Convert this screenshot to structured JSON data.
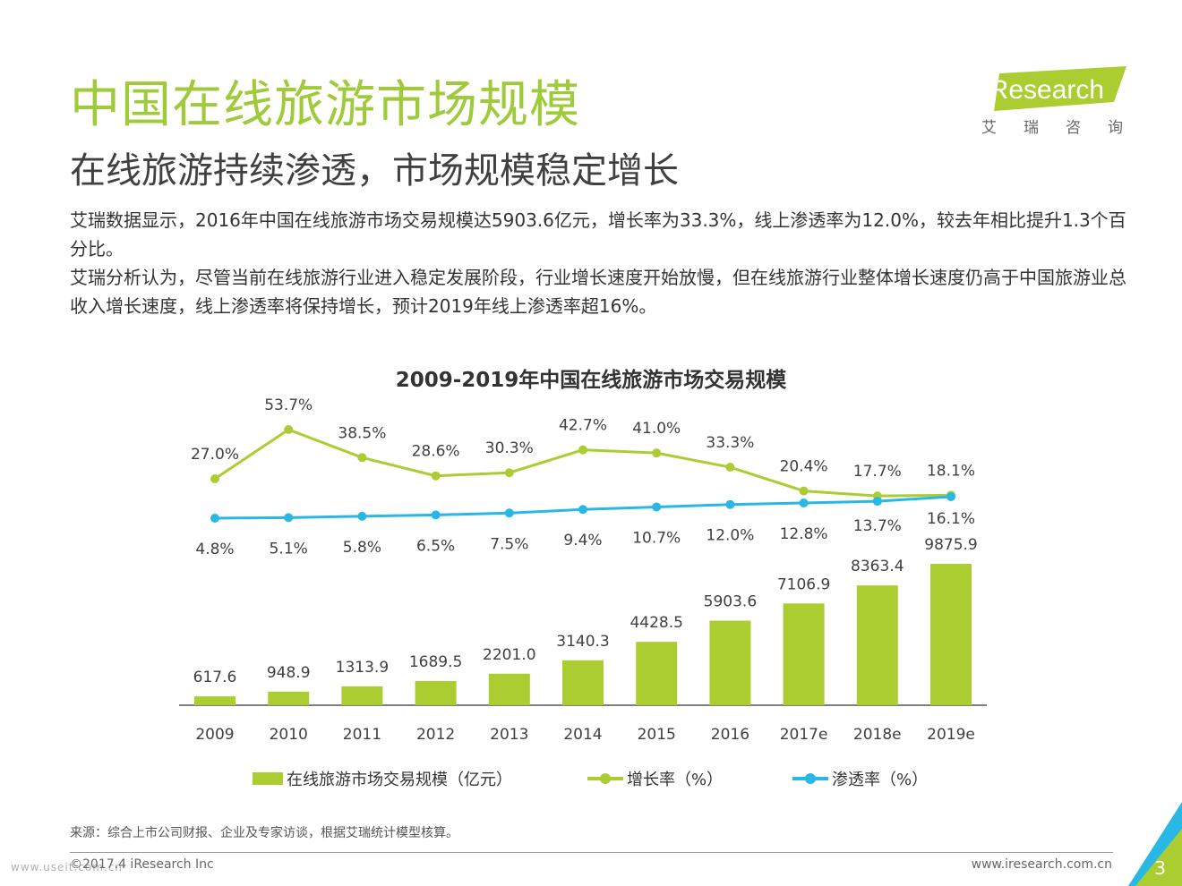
{
  "header": {
    "title": "中国在线旅游市场规模",
    "subtitle": "在线旅游持续渗透，市场规模稳定增长"
  },
  "logo": {
    "text": "iResearch",
    "cn_text": "艾瑞咨询",
    "brand_color": "#abcd32"
  },
  "body": {
    "paragraph1": "艾瑞数据显示，2016年中国在线旅游市场交易规模达5903.6亿元，增长率为33.3%，线上渗透率为12.0%，较去年相比提升1.3个百分比。",
    "paragraph2": "艾瑞分析认为，尽管当前在线旅游行业进入稳定发展阶段，行业增长速度开始放慢，但在线旅游行业整体增长速度仍高于中国旅游业总收入增长速度，线上渗透率将保持增长，预计2019年线上渗透率超16%。"
  },
  "chart_data": {
    "type": "bar",
    "title": "2009-2019年中国在线旅游市场交易规模",
    "categories": [
      "2009",
      "2010",
      "2011",
      "2012",
      "2013",
      "2014",
      "2015",
      "2016",
      "2017e",
      "2018e",
      "2019e"
    ],
    "series": [
      {
        "name": "在线旅游市场交易规模（亿元）",
        "type": "bar",
        "color": "#abcd32",
        "values": [
          617.6,
          948.9,
          1313.9,
          1689.5,
          2201.0,
          3140.3,
          4428.5,
          5903.6,
          7106.9,
          8363.4,
          9875.9
        ],
        "labels": [
          "617.6",
          "948.9",
          "1313.9",
          "1689.5",
          "2201.0",
          "3140.3",
          "4428.5",
          "5903.6",
          "7106.9",
          "8363.4",
          "9875.9"
        ]
      },
      {
        "name": "增长率（%）",
        "type": "line",
        "color": "#abcd32",
        "values": [
          27.0,
          53.7,
          38.5,
          28.6,
          30.3,
          42.7,
          41.0,
          33.3,
          20.4,
          17.7,
          18.1
        ],
        "labels": [
          "27.0%",
          "53.7%",
          "38.5%",
          "28.6%",
          "30.3%",
          "42.7%",
          "41.0%",
          "33.3%",
          "20.4%",
          "17.7%",
          "18.1%"
        ]
      },
      {
        "name": "渗透率（%）",
        "type": "line",
        "color": "#29b8e5",
        "values": [
          4.8,
          5.1,
          5.8,
          6.5,
          7.5,
          9.4,
          10.7,
          12.0,
          12.8,
          13.7,
          16.1
        ],
        "labels": [
          "4.8%",
          "5.1%",
          "5.8%",
          "6.5%",
          "7.5%",
          "9.4%",
          "10.7%",
          "12.0%",
          "12.8%",
          "13.7%",
          "16.1%"
        ]
      }
    ],
    "legend_position": "bottom"
  },
  "legend": {
    "bar": "在线旅游市场交易规模（亿元）",
    "growth": "增长率（%）",
    "penetration": "渗透率（%）"
  },
  "footer": {
    "source": "来源：综合上市公司财报、企业及专家访谈，根据艾瑞统计模型核算。",
    "copyright": "©2017.4 iResearch Inc",
    "website": "www.iresearch.com.cn",
    "page_number": "3",
    "watermark": "www.useit.com.cn"
  },
  "colors": {
    "accent_green": "#abcd32",
    "accent_blue": "#29b8e5",
    "title_green": "#9fca3a"
  }
}
